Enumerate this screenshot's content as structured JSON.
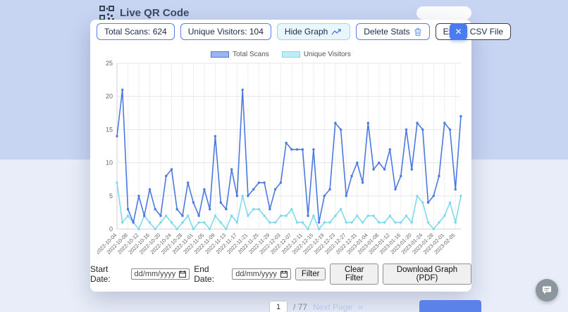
{
  "page": {
    "brand": {
      "title": "Live QR Code"
    },
    "pagination": {
      "current_page": "1",
      "separator": "/",
      "total_pages": "77",
      "next_label": "Next Page",
      "next_symbol": "»"
    }
  },
  "modal": {
    "stats": {
      "total_scans_label": "Total Scans: 624",
      "unique_visitors_label": "Unique Visitors: 104"
    },
    "buttons": {
      "hide_graph": "Hide Graph",
      "delete_stats": "Delete Stats",
      "export_csv": "Export CSV File",
      "close": "✕"
    },
    "filters": {
      "start_date_label": "Start Date:",
      "end_date_label": "End Date:",
      "date_placeholder": "dd/mm/yyyy",
      "filter_button": "Filter",
      "clear_filter_button": "Clear Filter",
      "download_graph_button": "Download Graph (PDF)"
    }
  },
  "colors": {
    "accent_blue": "#4a7cf0",
    "chart_blue": "#4b79e1",
    "chart_cyan": "#7fd9ec",
    "grid": "#e6e6e6",
    "axis_text": "#666666"
  },
  "chart_data": {
    "type": "line",
    "title": "",
    "xlabel": "",
    "ylabel": "",
    "ylim": [
      0,
      25
    ],
    "y_ticks": [
      0,
      5,
      10,
      15,
      20,
      25
    ],
    "label_every": 2,
    "grid": true,
    "legend_position": "top",
    "x": [
      "2022-10-04",
      "2022-10-06",
      "2022-10-08",
      "2022-10-10",
      "2022-10-12",
      "2022-10-14",
      "2022-10-16",
      "2022-10-18",
      "2022-10-20",
      "2022-10-22",
      "2022-10-24",
      "2022-10-26",
      "2022-10-28",
      "2022-10-30",
      "2022-11-01",
      "2022-11-03",
      "2022-11-05",
      "2022-11-07",
      "2022-11-09",
      "2022-11-11",
      "2022-11-13",
      "2022-11-15",
      "2022-11-17",
      "2022-11-19",
      "2022-11-21",
      "2022-11-23",
      "2022-11-25",
      "2022-11-27",
      "2022-11-29",
      "2022-12-01",
      "2022-12-03",
      "2022-12-05",
      "2022-12-07",
      "2022-12-09",
      "2022-12-11",
      "2022-12-13",
      "2022-12-15",
      "2022-12-17",
      "2022-12-19",
      "2022-12-21",
      "2022-12-23",
      "2022-12-25",
      "2022-12-27",
      "2022-12-29",
      "2022-12-31",
      "2023-01-02",
      "2023-01-04",
      "2023-01-06",
      "2023-01-08",
      "2023-01-10",
      "2023-01-12",
      "2023-01-14",
      "2023-01-16",
      "2023-01-18",
      "2023-01-20",
      "2023-01-22",
      "2023-01-24",
      "2023-01-26",
      "2023-01-28",
      "2023-01-30",
      "2023-02-01",
      "2023-02-03",
      "2023-02-05",
      "2023-02-07"
    ],
    "series": [
      {
        "name": "Total Scans",
        "color": "#4b79e1",
        "fill_color": "rgba(75,121,225,0.55)",
        "values": [
          14,
          21,
          3,
          1,
          5,
          2,
          6,
          3,
          2,
          8,
          9,
          3,
          2,
          7,
          4,
          2,
          6,
          3,
          14,
          4,
          3,
          9,
          5,
          21,
          5,
          6,
          7,
          7,
          3,
          6,
          7,
          13,
          12,
          12,
          12,
          2,
          12,
          1,
          5,
          6,
          16,
          15,
          5,
          8,
          10,
          7,
          16,
          9,
          10,
          9,
          12,
          6,
          8,
          15,
          9,
          16,
          15,
          4,
          5,
          8,
          16,
          15,
          6,
          17
        ]
      },
      {
        "name": "Unique Visitors",
        "color": "#7fd9ec",
        "fill_color": "rgba(127,217,236,0.5)",
        "values": [
          7,
          1,
          2,
          1,
          0,
          2,
          1,
          0,
          1,
          2,
          1,
          0,
          1,
          2,
          0,
          1,
          1,
          0,
          2,
          1,
          0,
          2,
          1,
          5,
          2,
          3,
          3,
          2,
          1,
          1,
          2,
          2,
          3,
          1,
          1,
          0,
          2,
          0,
          1,
          1,
          2,
          3,
          1,
          1,
          2,
          1,
          2,
          2,
          1,
          1,
          2,
          1,
          1,
          2,
          1,
          5,
          4,
          1,
          0,
          1,
          2,
          4,
          1,
          5
        ]
      }
    ]
  }
}
